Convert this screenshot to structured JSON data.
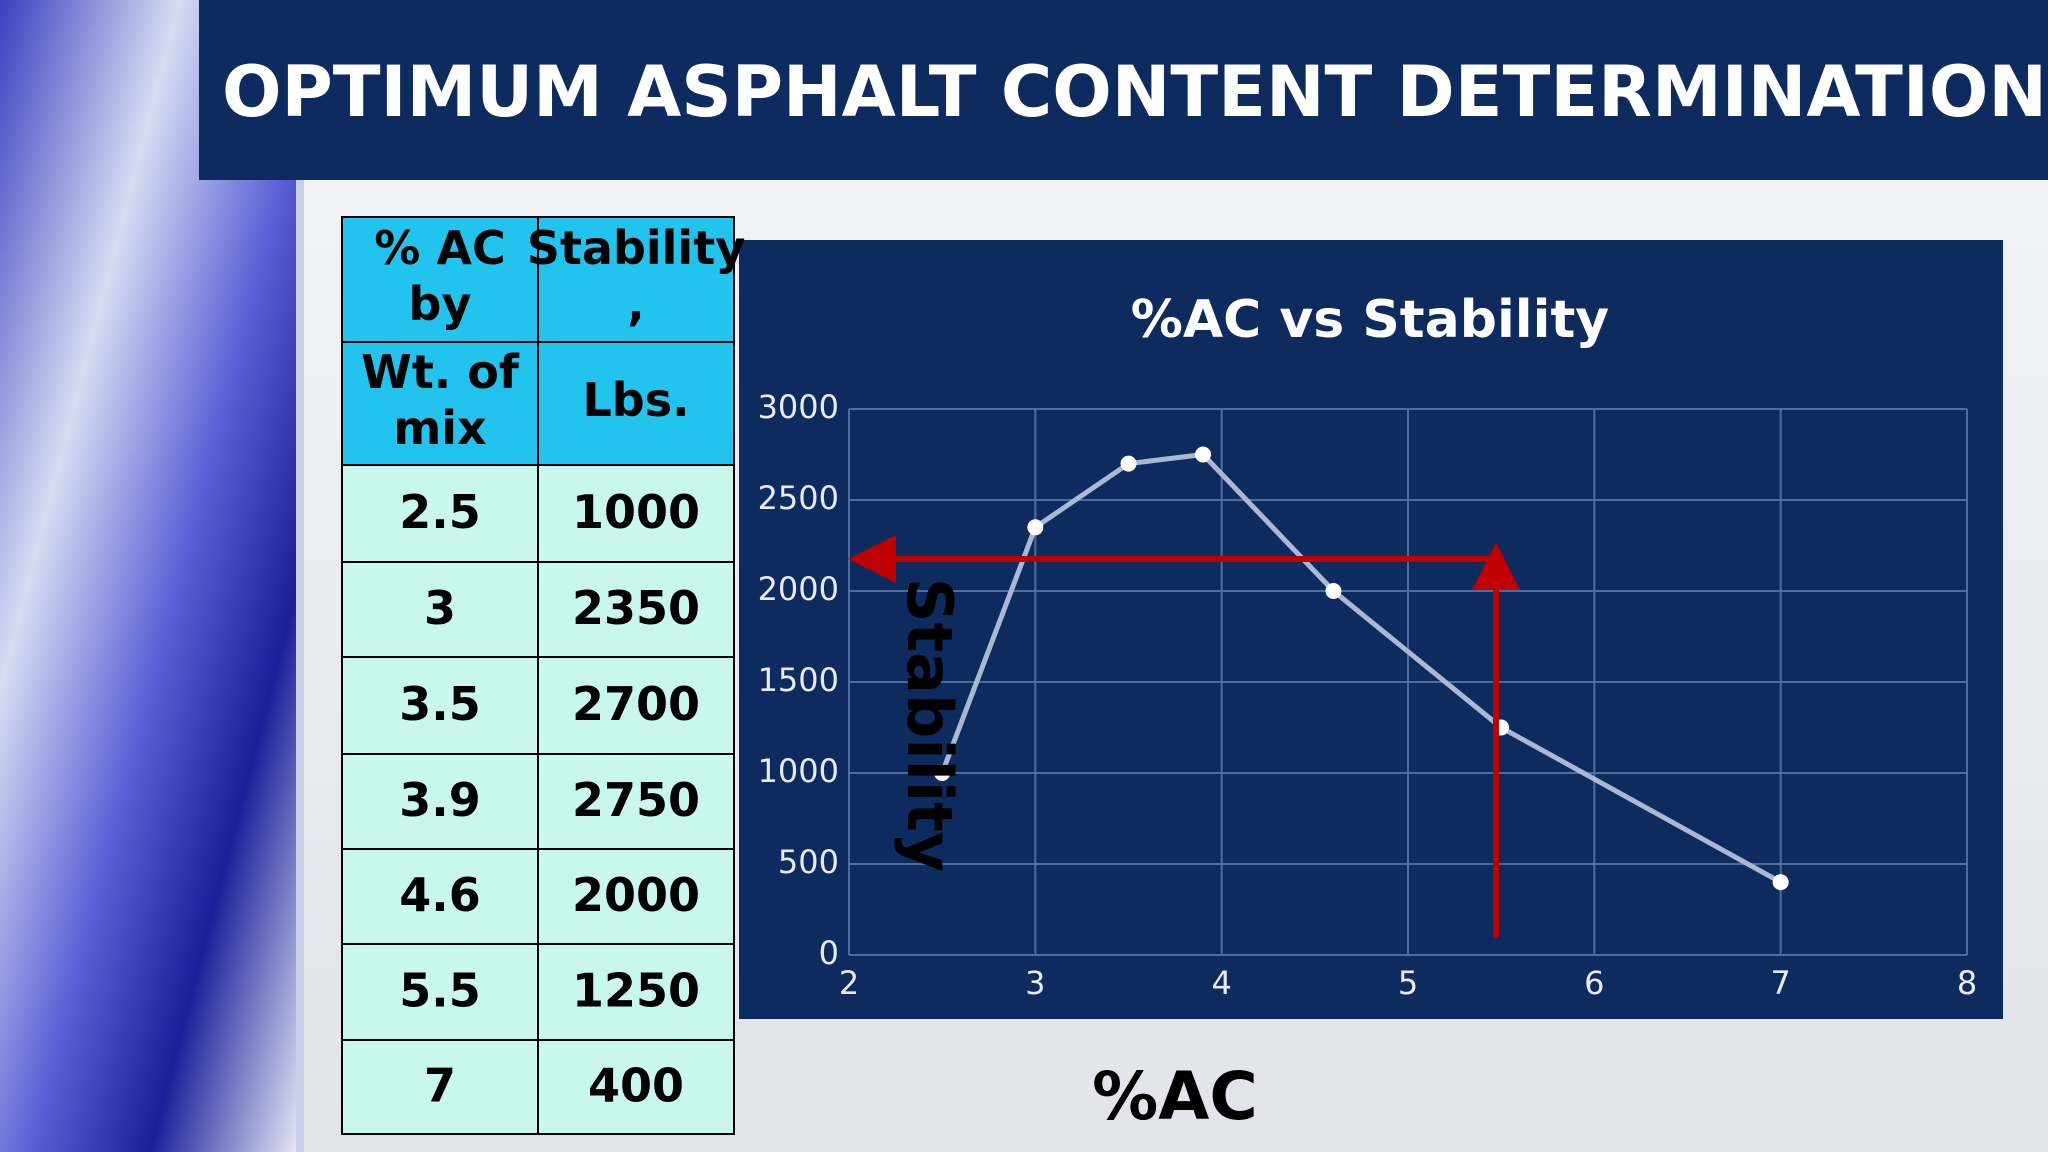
{
  "slide_title": "OPTIMUM ASPHALT CONTENT DETERMINATION",
  "table": {
    "header_rows": [
      [
        [
          "% AC",
          "by"
        ],
        [
          "Stability",
          ","
        ]
      ],
      [
        [
          "Wt. of",
          "mix"
        ],
        [
          "Lbs."
        ]
      ]
    ],
    "rows": [
      [
        "2.5",
        "1000"
      ],
      [
        "3",
        "2350"
      ],
      [
        "3.5",
        "2700"
      ],
      [
        "3.9",
        "2750"
      ],
      [
        "4.6",
        "2000"
      ],
      [
        "5.5",
        "1250"
      ],
      [
        "7",
        "400"
      ]
    ]
  },
  "chart_data": {
    "type": "line",
    "title": "%AC vs Stability",
    "x_label": "%AC",
    "y_label": "Stability",
    "x": [
      2.5,
      3,
      3.5,
      3.9,
      4.6,
      5.5,
      7
    ],
    "series": [
      {
        "name": "Stability",
        "color": "#a9b9d3",
        "values": [
          1000,
          2350,
          2700,
          2750,
          2000,
          1250,
          400
        ]
      }
    ],
    "xlim": [
      2,
      8
    ],
    "xticks": [
      2,
      3,
      4,
      5,
      6,
      7,
      8
    ],
    "ylim": [
      0,
      3000
    ],
    "yticks": [
      0,
      500,
      1000,
      1500,
      2000,
      2500,
      3000
    ],
    "grid": true
  }
}
